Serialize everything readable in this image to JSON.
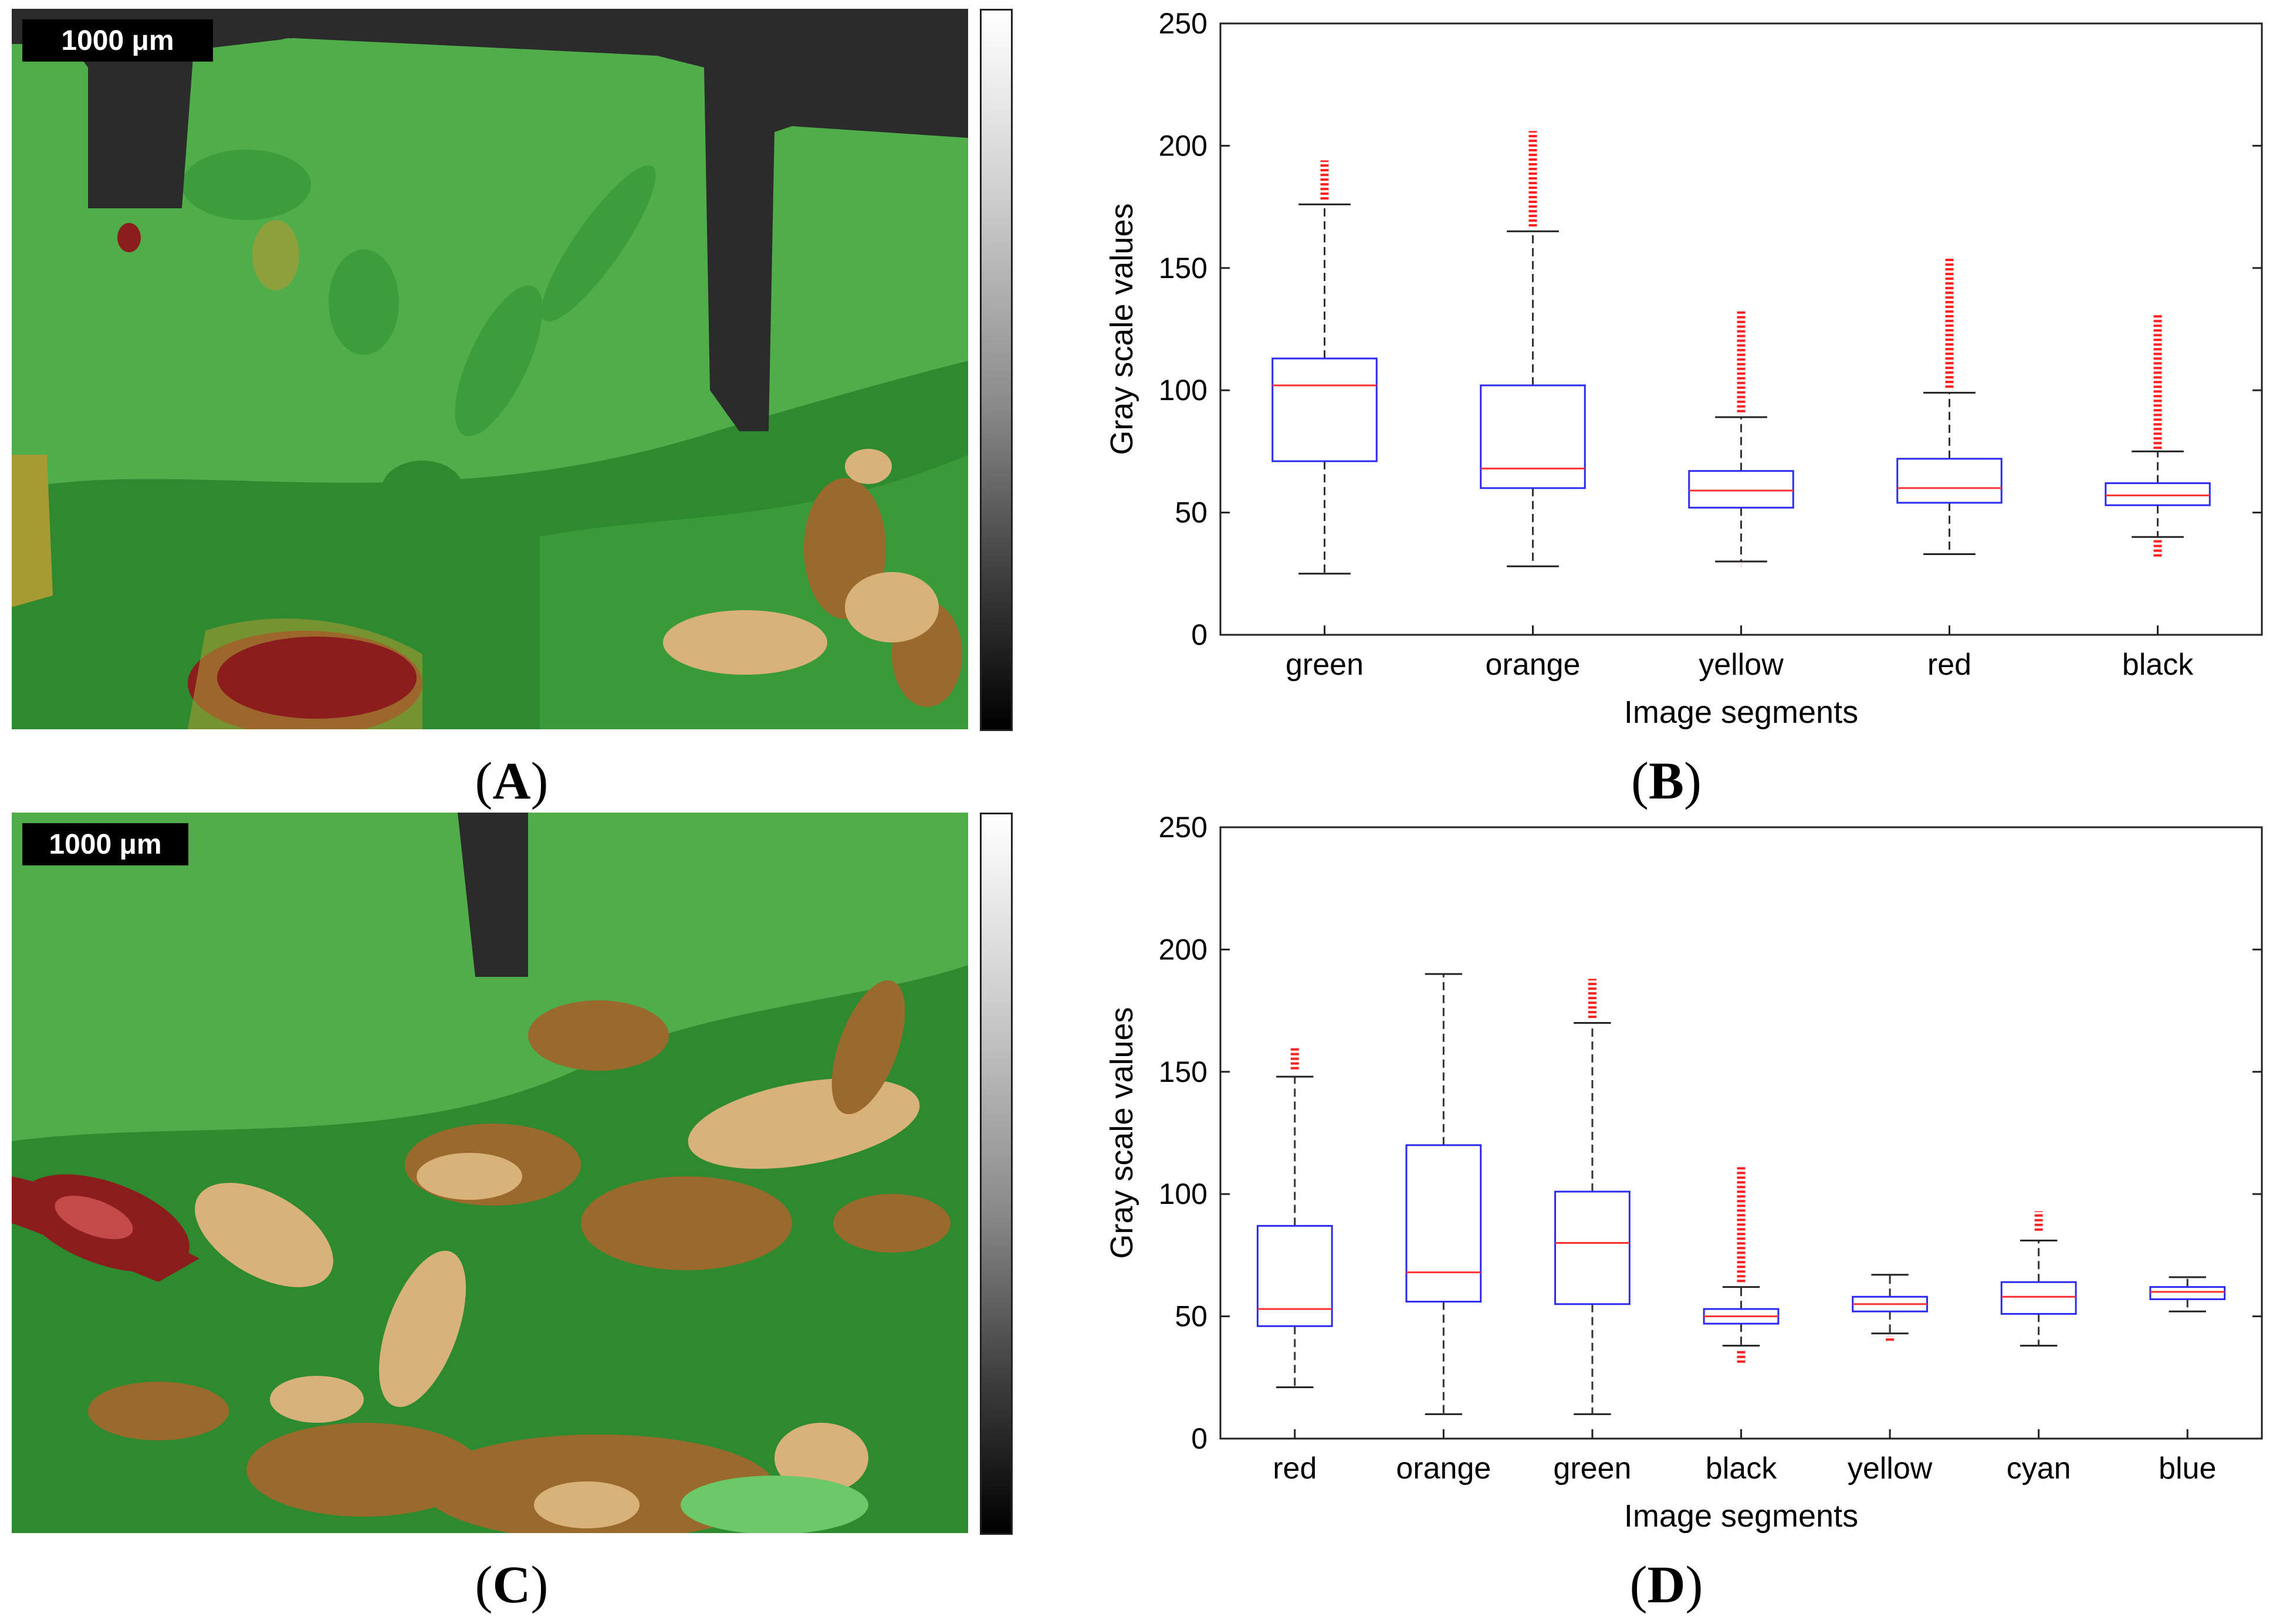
{
  "panels": {
    "a": {
      "scale_label": "1000 μm",
      "caption": "A",
      "colors": {
        "green": "#4fae4a",
        "dark_green": "#2e8a2e",
        "black": "#2b2b2b",
        "olive": "#a69a35",
        "red": "#8c1d1d",
        "tan": "#d9b27a",
        "brown": "#9a6a2c"
      }
    },
    "c": {
      "scale_label": "1000 μm",
      "caption": "C",
      "colors": {
        "green": "#4fae4a",
        "dark_green": "#2e8a2e",
        "black": "#2b2b2b",
        "red": "#8c1d1d",
        "tan": "#d9b27a",
        "brown": "#9a6a2c"
      }
    },
    "b": {
      "caption": "B"
    },
    "d": {
      "caption": "D"
    }
  },
  "chart_data": [
    {
      "type": "box",
      "panel": "B",
      "xlabel": "Image segments",
      "ylabel": "Gray scale values",
      "ylim": [
        0,
        250
      ],
      "yticks": [
        0,
        50,
        100,
        150,
        200,
        250
      ],
      "categories": [
        "green",
        "orange",
        "yellow",
        "red",
        "black"
      ],
      "boxes": [
        {
          "whisker_low": 25,
          "q1": 71,
          "median": 102,
          "q3": 113,
          "whisker_high": 176,
          "outliers_low": [],
          "outliers_high": [
            178,
            194
          ]
        },
        {
          "whisker_low": 28,
          "q1": 60,
          "median": 68,
          "q3": 102,
          "whisker_high": 165,
          "outliers_low": [],
          "outliers_high": [
            167,
            206
          ]
        },
        {
          "whisker_low": 30,
          "q1": 52,
          "median": 59,
          "q3": 67,
          "whisker_high": 89,
          "outliers_low": [
            29,
            29
          ],
          "outliers_high": [
            91,
            133
          ]
        },
        {
          "whisker_low": 33,
          "q1": 54,
          "median": 60,
          "q3": 72,
          "whisker_high": 99,
          "outliers_low": [],
          "outliers_high": [
            101,
            154
          ]
        },
        {
          "whisker_low": 40,
          "q1": 53,
          "median": 57,
          "q3": 62,
          "whisker_high": 75,
          "outliers_low": [
            32,
            39
          ],
          "outliers_high": [
            76,
            131
          ]
        }
      ]
    },
    {
      "type": "box",
      "panel": "D",
      "xlabel": "Image segments",
      "ylabel": "Gray scale values",
      "ylim": [
        0,
        250
      ],
      "yticks": [
        0,
        50,
        100,
        150,
        200,
        250
      ],
      "categories": [
        "red",
        "orange",
        "green",
        "black",
        "yellow",
        "cyan",
        "blue"
      ],
      "boxes": [
        {
          "whisker_low": 21,
          "q1": 46,
          "median": 53,
          "q3": 87,
          "whisker_high": 148,
          "outliers_low": [],
          "outliers_high": [
            151,
            160
          ]
        },
        {
          "whisker_low": 10,
          "q1": 56,
          "median": 68,
          "q3": 120,
          "whisker_high": 190,
          "outliers_low": [],
          "outliers_high": []
        },
        {
          "whisker_low": 10,
          "q1": 55,
          "median": 80,
          "q3": 101,
          "whisker_high": 170,
          "outliers_low": [],
          "outliers_high": [
            172,
            188
          ]
        },
        {
          "whisker_low": 38,
          "q1": 47,
          "median": 50,
          "q3": 53,
          "whisker_high": 62,
          "outliers_low": [
            31,
            36
          ],
          "outliers_high": [
            64,
            111
          ]
        },
        {
          "whisker_low": 43,
          "q1": 52,
          "median": 55,
          "q3": 58,
          "whisker_high": 67,
          "outliers_low": [
            40,
            42
          ],
          "outliers_high": []
        },
        {
          "whisker_low": 38,
          "q1": 51,
          "median": 58,
          "q3": 64,
          "whisker_high": 81,
          "outliers_low": [],
          "outliers_high": [
            85,
            93
          ]
        },
        {
          "whisker_low": 52,
          "q1": 57,
          "median": 60,
          "q3": 62,
          "whisker_high": 66,
          "outliers_low": [],
          "outliers_high": []
        }
      ]
    }
  ]
}
